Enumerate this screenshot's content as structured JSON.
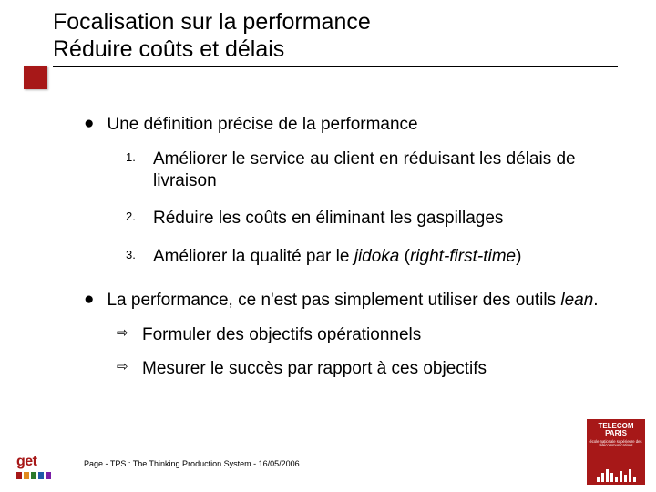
{
  "colors": {
    "accent": "#a71818",
    "text": "#000000",
    "background": "#ffffff"
  },
  "title": {
    "line1": "Focalisation sur la performance",
    "line2": "Réduire coûts et délais"
  },
  "bullets": [
    {
      "text": "Une définition précise de la performance",
      "ordered_items": [
        {
          "num": "1.",
          "text": "Améliorer le service au client en réduisant les délais de livraison"
        },
        {
          "num": "2.",
          "text": "Réduire les coûts en éliminant les gaspillages"
        },
        {
          "num": "3.",
          "text_before": "Améliorer la qualité par le ",
          "italic": "jidoka",
          "text_after": " (",
          "italic2": "right-first-time",
          "text_close": ")"
        }
      ]
    },
    {
      "text_before": "La performance, ce n'est pas simplement utiliser des outils ",
      "italic": "lean",
      "text_after": ".",
      "arrow_items": [
        {
          "text": "Formuler des objectifs opérationnels"
        },
        {
          "text": "Mesurer le succès par rapport à ces objectifs"
        }
      ]
    }
  ],
  "footer": "Page  - TPS : The Thinking Production System - 16/05/2006",
  "logo_left": {
    "text": "get",
    "bar_colors": [
      "#a71818",
      "#e08a1e",
      "#2b7a2b",
      "#1e5aa8",
      "#7a1ea7"
    ]
  },
  "logo_right": {
    "line1": "TELECOM",
    "line2": "PARIS",
    "sub": "école nationale supérieure des télécommunications",
    "stripe_heights": [
      6,
      10,
      14,
      10,
      6,
      12,
      8,
      14,
      6
    ]
  }
}
